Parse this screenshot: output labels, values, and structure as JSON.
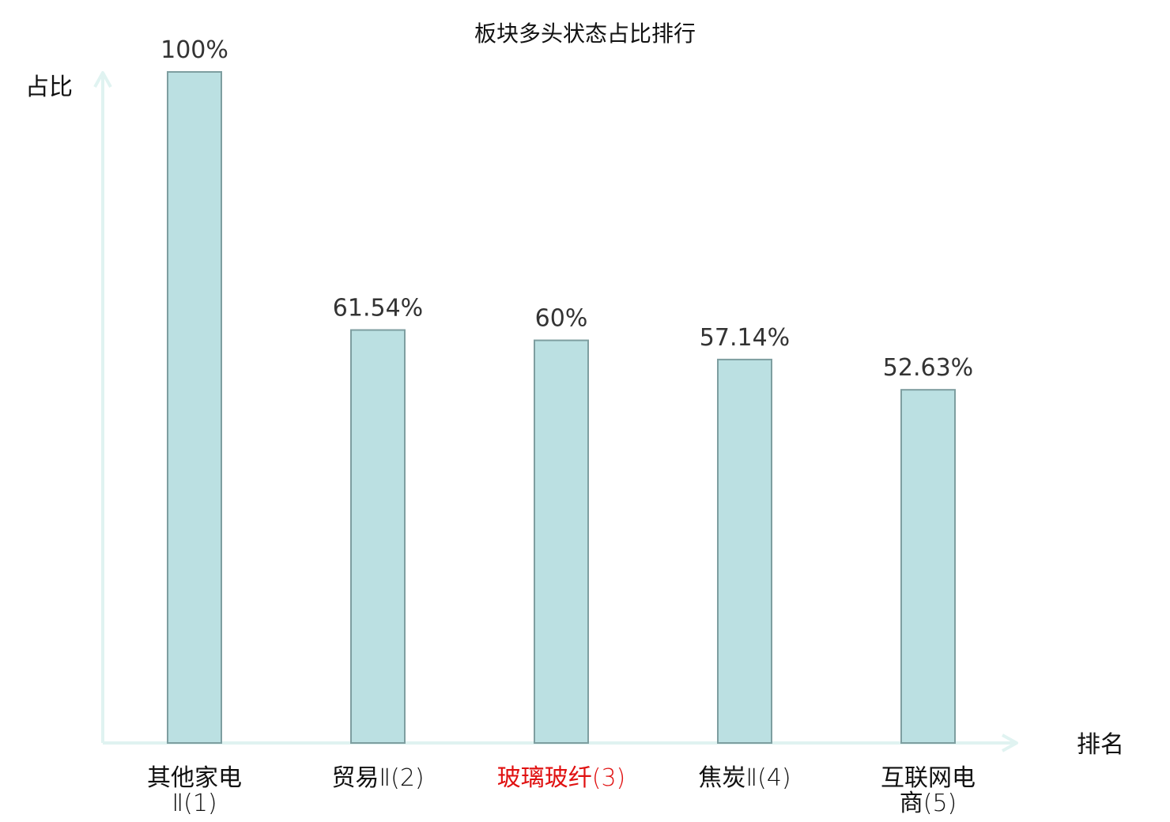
{
  "chart_data": {
    "type": "bar",
    "title": "板块多头状态占比排行",
    "ylabel": "占比",
    "xlabel": "排名",
    "ylim": [
      0,
      100
    ],
    "grid": false,
    "categories": [
      {
        "lines": [
          "其他家电",
          "Ⅱ(1)"
        ],
        "highlight": false
      },
      {
        "lines": [
          "贸易Ⅱ(2)"
        ],
        "highlight": false
      },
      {
        "lines": [
          "玻璃玻纤(3)"
        ],
        "highlight": true
      },
      {
        "lines": [
          "焦炭Ⅱ(4)"
        ],
        "highlight": false
      },
      {
        "lines": [
          "互联网电",
          "商(5)"
        ],
        "highlight": false
      }
    ],
    "values": [
      100,
      61.54,
      60,
      57.14,
      52.63
    ],
    "value_labels": [
      "100%",
      "61.54%",
      "60%",
      "57.14%",
      "52.63%"
    ]
  },
  "colors": {
    "bar_fill": "#bbe0e2",
    "bar_stroke": "#7e9ea0",
    "axis": "#e0f3f1",
    "label_text": "#111111",
    "highlight_text": "#e01010",
    "value_text": "#333333"
  }
}
